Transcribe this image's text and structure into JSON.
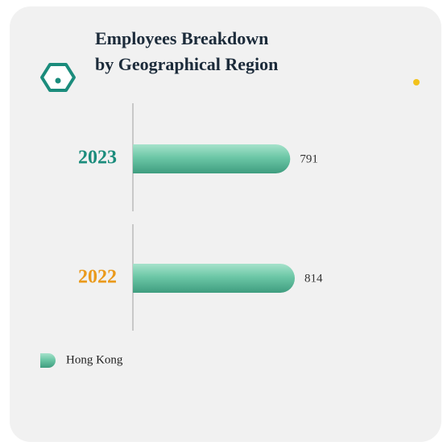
{
  "chart_data": {
    "type": "bar",
    "orientation": "horizontal",
    "title": "Employees Breakdown by Geographical Region",
    "title_lines": [
      "Employees Breakdown",
      "by Geographical Region"
    ],
    "categories": [
      "2023",
      "2022"
    ],
    "category_colors": [
      "#1b8c7c",
      "#ea9a1c"
    ],
    "series": [
      {
        "name": "Hong Kong",
        "color": "#5fbf9f",
        "values": [
          791,
          814
        ]
      }
    ],
    "legend": "bottom-left"
  }
}
